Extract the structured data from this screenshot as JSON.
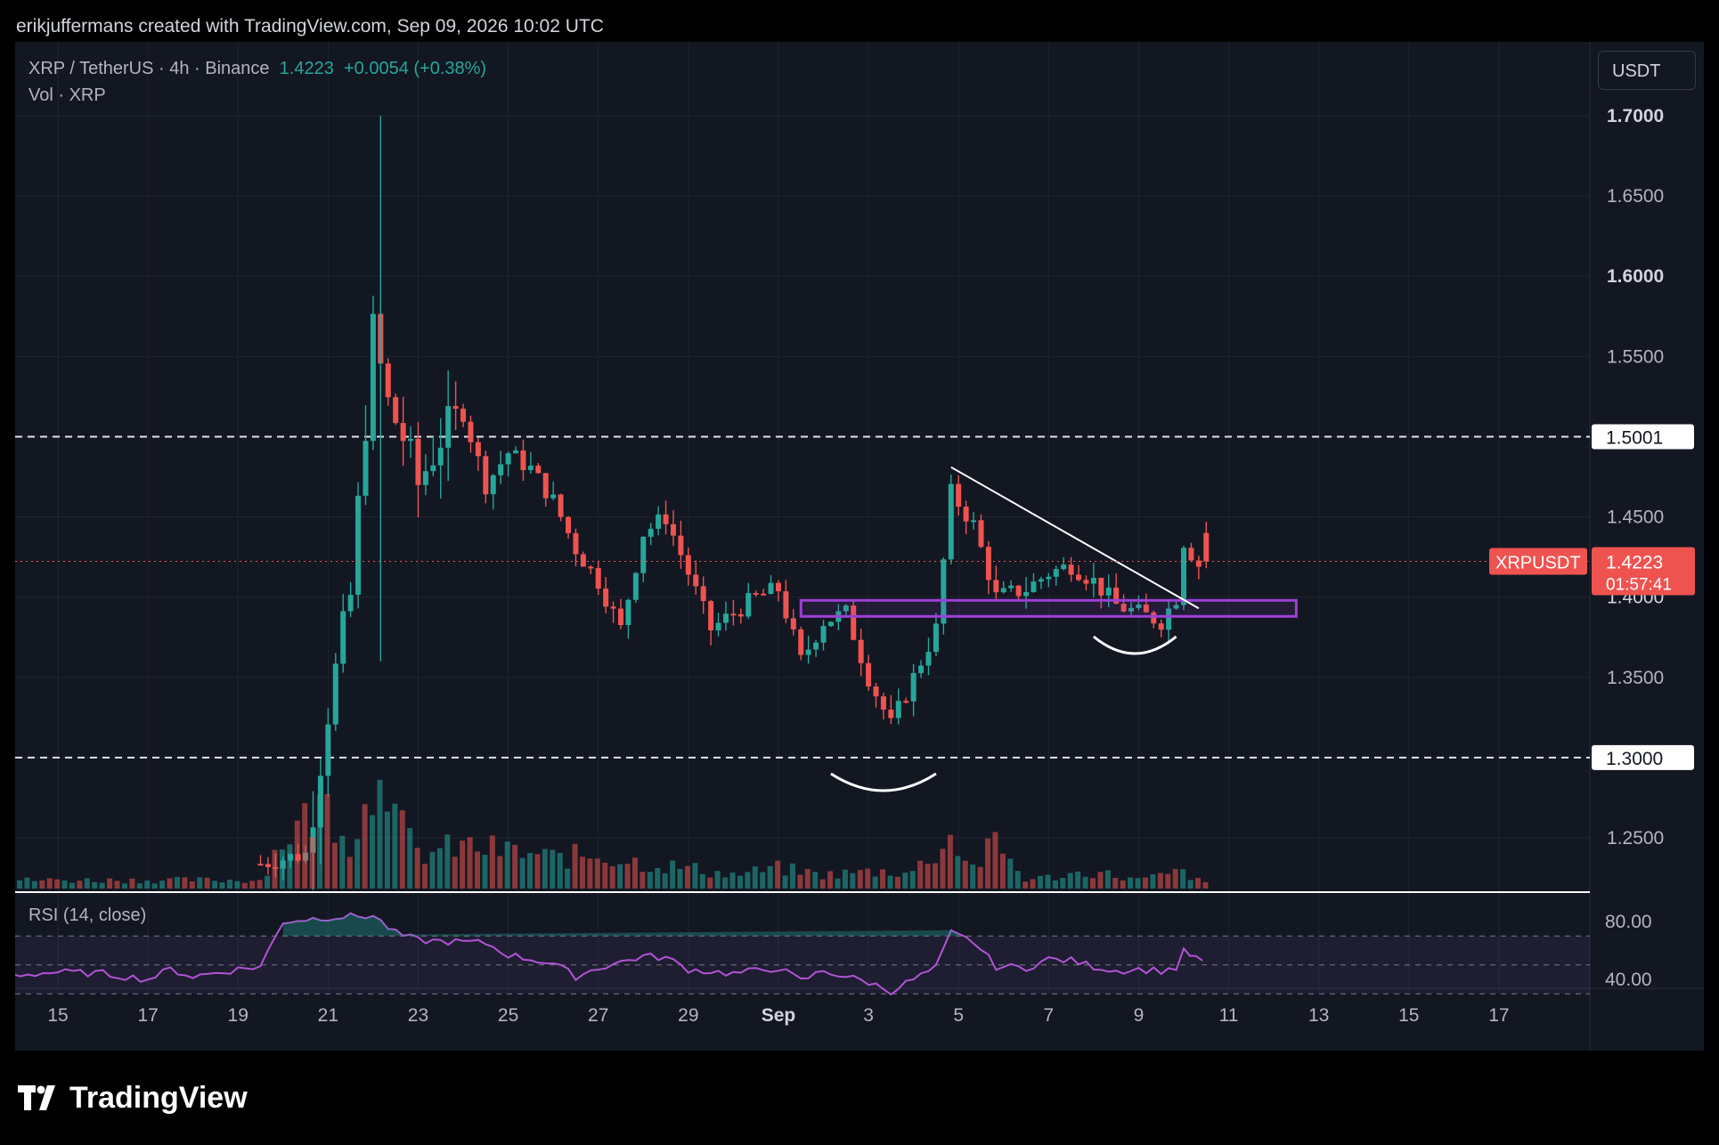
{
  "header": {
    "credit": "erikjuffermans created with TradingView.com, Sep 09, 2026 10:02 UTC"
  },
  "legend": {
    "pair": "XRP / TetherUS",
    "interval": "4h",
    "exchange": "Binance",
    "price": "1.4223",
    "change": "+0.0054 (+0.38%)",
    "volume_label": "Vol · XRP"
  },
  "currency_box": "USDT",
  "logo_text": "TradingView",
  "colors": {
    "bg": "#131722",
    "up": "#26a69a",
    "down": "#ef5350",
    "rsi": "#b154d4",
    "zone": "#9c40d6",
    "grid": "#1f2431"
  },
  "chart_data": {
    "type": "candlestick",
    "symbol": "XRPUSDT",
    "ylim": [
      1.215,
      1.71
    ],
    "price_ticks": [
      "1.7000",
      "1.6500",
      "1.6000",
      "1.5500",
      "1.4500",
      "1.4000",
      "1.3500",
      "1.2500"
    ],
    "x_ticks": [
      "15",
      "17",
      "19",
      "21",
      "23",
      "25",
      "27",
      "29",
      "Sep",
      "3",
      "5",
      "7",
      "9",
      "11",
      "13",
      "15",
      "17"
    ],
    "horizontal_levels": [
      {
        "value": 1.5,
        "label": "1.5001"
      },
      {
        "value": 1.3,
        "label": "1.3000"
      }
    ],
    "last_price": {
      "symbol": "XRPUSDT",
      "value": 1.4223,
      "label": "1.4223",
      "countdown": "01:57:41"
    },
    "zone": {
      "x_start": "2026-08-31T12:00",
      "x_end": "2026-09-11T12:00",
      "low": 1.388,
      "high": 1.398
    },
    "trendline": {
      "start": {
        "x": "2026-09-03T20:00",
        "y": 1.481
      },
      "end": {
        "x": "2026-09-09T08:00",
        "y": 1.393
      }
    },
    "arcs": [
      {
        "x_start": "2026-09-01T04:00",
        "x_end": "2026-09-03T12:00"
      },
      {
        "x_start": "2026-09-07T00:00",
        "x_end": "2026-09-08T20:00"
      }
    ],
    "price_series": [
      {
        "t": "2026-08-14T00:00",
        "c": 1.2
      },
      {
        "t": "2026-08-20T12:00",
        "c": 1.24
      },
      {
        "t": "2026-08-21T00:00",
        "c": 1.33
      },
      {
        "t": "2026-08-21T12:00",
        "c": 1.4
      },
      {
        "t": "2026-08-22T00:00",
        "c": 1.565
      },
      {
        "t": "2026-08-22T08:00",
        "c": 1.52
      },
      {
        "t": "2026-08-22T16:00",
        "c": 1.5
      },
      {
        "t": "2026-08-23T00:00",
        "c": 1.47
      },
      {
        "t": "2026-08-23T12:00",
        "c": 1.5
      },
      {
        "t": "2026-08-24T00:00",
        "c": 1.515
      },
      {
        "t": "2026-08-24T12:00",
        "c": 1.47
      },
      {
        "t": "2026-08-25T00:00",
        "c": 1.49
      },
      {
        "t": "2026-08-25T12:00",
        "c": 1.48
      },
      {
        "t": "2026-08-26T00:00",
        "c": 1.46
      },
      {
        "t": "2026-08-26T12:00",
        "c": 1.43
      },
      {
        "t": "2026-08-27T00:00",
        "c": 1.41
      },
      {
        "t": "2026-08-27T12:00",
        "c": 1.38
      },
      {
        "t": "2026-08-28T00:00",
        "c": 1.44
      },
      {
        "t": "2026-08-28T12:00",
        "c": 1.45
      },
      {
        "t": "2026-08-29T00:00",
        "c": 1.415
      },
      {
        "t": "2026-08-29T12:00",
        "c": 1.38
      },
      {
        "t": "2026-08-30T00:00",
        "c": 1.39
      },
      {
        "t": "2026-08-30T12:00",
        "c": 1.4
      },
      {
        "t": "2026-08-31T00:00",
        "c": 1.405
      },
      {
        "t": "2026-08-31T12:00",
        "c": 1.36
      },
      {
        "t": "2026-09-01T00:00",
        "c": 1.385
      },
      {
        "t": "2026-09-01T12:00",
        "c": 1.39
      },
      {
        "t": "2026-09-02T00:00",
        "c": 1.35
      },
      {
        "t": "2026-09-02T12:00",
        "c": 1.32
      },
      {
        "t": "2026-09-03T00:00",
        "c": 1.35
      },
      {
        "t": "2026-09-03T12:00",
        "c": 1.38
      },
      {
        "t": "2026-09-03T20:00",
        "c": 1.465
      },
      {
        "t": "2026-09-04T08:00",
        "c": 1.445
      },
      {
        "t": "2026-09-04T20:00",
        "c": 1.4
      },
      {
        "t": "2026-09-05T12:00",
        "c": 1.405
      },
      {
        "t": "2026-09-06T00:00",
        "c": 1.415
      },
      {
        "t": "2026-09-06T12:00",
        "c": 1.42
      },
      {
        "t": "2026-09-07T00:00",
        "c": 1.41
      },
      {
        "t": "2026-09-07T12:00",
        "c": 1.395
      },
      {
        "t": "2026-09-08T00:00",
        "c": 1.39
      },
      {
        "t": "2026-09-08T12:00",
        "c": 1.385
      },
      {
        "t": "2026-09-08T20:00",
        "c": 1.4
      },
      {
        "t": "2026-09-09T00:00",
        "c": 1.435
      },
      {
        "t": "2026-09-09T08:00",
        "c": 1.42
      },
      {
        "t": "2026-09-09T10:00",
        "c": 1.4223
      }
    ],
    "volume_series": [
      {
        "t": "2026-08-14T00:00",
        "v": 0.05
      },
      {
        "t": "2026-08-19T12:00",
        "v": 0.05
      },
      {
        "t": "2026-08-20T00:00",
        "v": 0.3
      },
      {
        "t": "2026-08-21T00:00",
        "v": 0.5
      },
      {
        "t": "2026-08-21T12:00",
        "v": 0.3
      },
      {
        "t": "2026-08-22T00:00",
        "v": 0.55
      },
      {
        "t": "2026-08-22T04:00",
        "v": 1.0
      },
      {
        "t": "2026-08-22T12:00",
        "v": 0.4
      },
      {
        "t": "2026-08-23T00:00",
        "v": 0.2
      },
      {
        "t": "2026-08-24T00:00",
        "v": 0.25
      },
      {
        "t": "2026-08-25T00:00",
        "v": 0.22
      },
      {
        "t": "2026-08-26T00:00",
        "v": 0.18
      },
      {
        "t": "2026-08-27T00:00",
        "v": 0.2
      },
      {
        "t": "2026-08-28T00:00",
        "v": 0.15
      },
      {
        "t": "2026-08-29T00:00",
        "v": 0.12
      },
      {
        "t": "2026-08-30T00:00",
        "v": 0.08
      },
      {
        "t": "2026-08-31T00:00",
        "v": 0.12
      },
      {
        "t": "2026-09-01T00:00",
        "v": 0.08
      },
      {
        "t": "2026-09-02T00:00",
        "v": 0.1
      },
      {
        "t": "2026-09-03T00:00",
        "v": 0.1
      },
      {
        "t": "2026-09-03T20:00",
        "v": 0.3
      },
      {
        "t": "2026-09-04T08:00",
        "v": 0.12
      },
      {
        "t": "2026-09-04T20:00",
        "v": 0.27
      },
      {
        "t": "2026-09-05T12:00",
        "v": 0.05
      },
      {
        "t": "2026-09-07T00:00",
        "v": 0.1
      },
      {
        "t": "2026-09-08T00:00",
        "v": 0.05
      },
      {
        "t": "2026-09-09T00:00",
        "v": 0.1
      },
      {
        "t": "2026-09-09T10:00",
        "v": 0.03
      }
    ],
    "rsi": {
      "label": "RSI (14, close)",
      "ticks": [
        "80.00",
        "40.00"
      ],
      "upper": 70,
      "lower": 30,
      "series": [
        {
          "t": "2026-08-14T00:00",
          "v": 43
        },
        {
          "t": "2026-08-15T00:00",
          "v": 45
        },
        {
          "t": "2026-08-16T00:00",
          "v": 44
        },
        {
          "t": "2026-08-17T00:00",
          "v": 40
        },
        {
          "t": "2026-08-17T12:00",
          "v": 47
        },
        {
          "t": "2026-08-18T00:00",
          "v": 42
        },
        {
          "t": "2026-08-19T00:00",
          "v": 47
        },
        {
          "t": "2026-08-19T12:00",
          "v": 49
        },
        {
          "t": "2026-08-20T00:00",
          "v": 80
        },
        {
          "t": "2026-08-21T00:00",
          "v": 83
        },
        {
          "t": "2026-08-22T00:00",
          "v": 84
        },
        {
          "t": "2026-08-22T12:00",
          "v": 72
        },
        {
          "t": "2026-08-23T00:00",
          "v": 67
        },
        {
          "t": "2026-08-24T12:00",
          "v": 65
        },
        {
          "t": "2026-08-25T00:00",
          "v": 57
        },
        {
          "t": "2026-08-26T00:00",
          "v": 51
        },
        {
          "t": "2026-08-26T12:00",
          "v": 42
        },
        {
          "t": "2026-08-27T00:00",
          "v": 48
        },
        {
          "t": "2026-08-28T00:00",
          "v": 56
        },
        {
          "t": "2026-08-28T12:00",
          "v": 55
        },
        {
          "t": "2026-08-29T00:00",
          "v": 47
        },
        {
          "t": "2026-08-30T00:00",
          "v": 44
        },
        {
          "t": "2026-08-31T00:00",
          "v": 48
        },
        {
          "t": "2026-08-31T12:00",
          "v": 39
        },
        {
          "t": "2026-09-01T00:00",
          "v": 46
        },
        {
          "t": "2026-09-01T12:00",
          "v": 42
        },
        {
          "t": "2026-09-02T00:00",
          "v": 38
        },
        {
          "t": "2026-09-02T12:00",
          "v": 32
        },
        {
          "t": "2026-09-03T00:00",
          "v": 40
        },
        {
          "t": "2026-09-03T12:00",
          "v": 48
        },
        {
          "t": "2026-09-03T20:00",
          "v": 72
        },
        {
          "t": "2026-09-04T08:00",
          "v": 66
        },
        {
          "t": "2026-09-04T20:00",
          "v": 49
        },
        {
          "t": "2026-09-05T12:00",
          "v": 48
        },
        {
          "t": "2026-09-06T00:00",
          "v": 54
        },
        {
          "t": "2026-09-06T12:00",
          "v": 53
        },
        {
          "t": "2026-09-07T00:00",
          "v": 49
        },
        {
          "t": "2026-09-07T12:00",
          "v": 46
        },
        {
          "t": "2026-09-08T00:00",
          "v": 47
        },
        {
          "t": "2026-09-08T12:00",
          "v": 46
        },
        {
          "t": "2026-09-08T20:00",
          "v": 48
        },
        {
          "t": "2026-09-09T00:00",
          "v": 59
        },
        {
          "t": "2026-09-09T10:00",
          "v": 53
        }
      ]
    }
  }
}
